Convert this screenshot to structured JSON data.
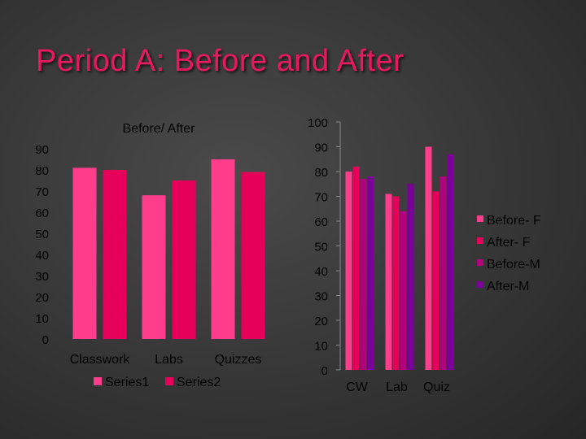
{
  "slide": {
    "title": "Period A: Before and After"
  },
  "chart_data": [
    {
      "type": "bar",
      "title": "Before/ After",
      "categories": [
        "Classwork",
        "Labs",
        "Quizzes"
      ],
      "yticks": [
        "0",
        "10",
        "20",
        "30",
        "40",
        "50",
        "60",
        "70",
        "80",
        "90"
      ],
      "ylim": [
        0,
        90
      ],
      "grid": false,
      "legend": "bottom",
      "series": [
        {
          "name": "Series1",
          "values": [
            81,
            68,
            85
          ],
          "color": "#ff3d8a"
        },
        {
          "name": "Series2",
          "values": [
            80,
            75,
            79
          ],
          "color": "#e6005a"
        }
      ]
    },
    {
      "type": "bar",
      "categories": [
        "CW",
        "Lab",
        "Quiz"
      ],
      "yticks": [
        "0",
        "10",
        "20",
        "30",
        "40",
        "50",
        "60",
        "70",
        "80",
        "90",
        "100"
      ],
      "ylim": [
        0,
        100
      ],
      "grid": false,
      "legend": "right",
      "series": [
        {
          "name": "Before- F",
          "values": [
            80,
            71,
            90
          ],
          "color": "#ff3d8a"
        },
        {
          "name": "After- F",
          "values": [
            82,
            70,
            72
          ],
          "color": "#e6005a"
        },
        {
          "name": "Before-M",
          "values": [
            77,
            64,
            78
          ],
          "color": "#b3007d"
        },
        {
          "name": "After-M",
          "values": [
            78,
            75,
            87
          ],
          "color": "#7a0099"
        }
      ]
    }
  ]
}
